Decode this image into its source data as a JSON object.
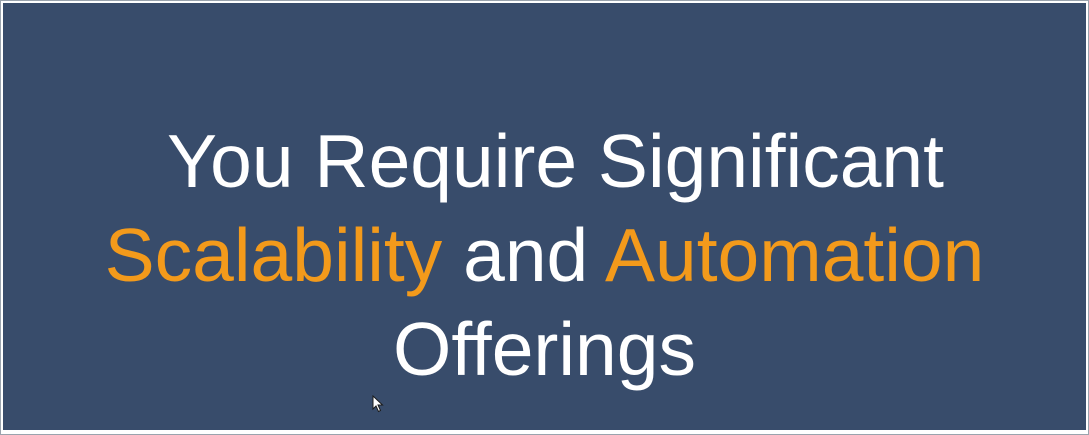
{
  "slide": {
    "title": {
      "line1": "You Require Significant",
      "line2_part1": "Scalability",
      "line2_part2": " and ",
      "line2_part3": "Automation",
      "line3": "Offerings"
    }
  },
  "colors": {
    "background": "#384c6b",
    "text": "#ffffff",
    "accent": "#f39a1b"
  },
  "cursor": {
    "icon": "mouse-pointer-icon"
  }
}
